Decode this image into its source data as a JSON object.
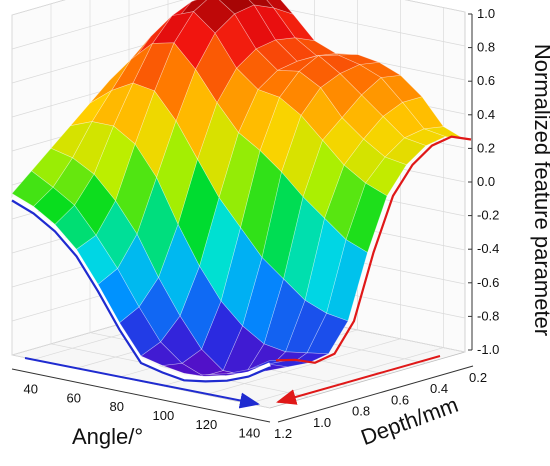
{
  "chart_data": {
    "type": "surface",
    "x_axis": {
      "label": "Angle/°",
      "ticks": [
        "40",
        "60",
        "80",
        "100",
        "120",
        "140"
      ],
      "range": [
        30,
        150
      ]
    },
    "y_axis": {
      "label": "Depth/mm",
      "ticks": [
        "1.2",
        "1.0",
        "0.8",
        "0.6",
        "0.4",
        "0.2"
      ],
      "range": [
        0.2,
        1.2
      ]
    },
    "z_axis": {
      "label": "Normalized feature parameter",
      "ticks": [
        "1.0",
        "0.8",
        "0.6",
        "0.4",
        "0.2",
        "0.0",
        "-0.2",
        "-0.4",
        "-0.6",
        "-0.8",
        "-1.0"
      ],
      "range": [
        -1.0,
        1.0
      ]
    },
    "colormap": [
      "#6a00b8",
      "#2a2ae0",
      "#0090ff",
      "#00e0e0",
      "#00dc20",
      "#b8f000",
      "#ffd000",
      "#ff7a00",
      "#f01010",
      "#8a0000"
    ],
    "grid": true,
    "angle_values": [
      30,
      40,
      50,
      60,
      70,
      80,
      90,
      100,
      110,
      120,
      130,
      140,
      150
    ],
    "depth_values": [
      0.2,
      0.3,
      0.4,
      0.5,
      0.6,
      0.7,
      0.8,
      0.9,
      1.0,
      1.1,
      1.2
    ],
    "z_values": [
      [
        0.8,
        0.8,
        0.88,
        0.9,
        0.78,
        0.65,
        0.6,
        0.62,
        0.6,
        0.55,
        0.45,
        0.3,
        0.25
      ],
      [
        0.75,
        0.82,
        0.95,
        0.97,
        0.85,
        0.7,
        0.62,
        0.65,
        0.62,
        0.57,
        0.45,
        0.32,
        0.3
      ],
      [
        0.65,
        0.78,
        0.92,
        1.0,
        0.9,
        0.72,
        0.62,
        0.68,
        0.6,
        0.5,
        0.4,
        0.3,
        0.28
      ],
      [
        0.55,
        0.72,
        0.9,
        0.97,
        0.88,
        0.7,
        0.6,
        0.62,
        0.55,
        0.4,
        0.3,
        0.22,
        0.2
      ],
      [
        0.5,
        0.7,
        0.85,
        0.9,
        0.8,
        0.62,
        0.52,
        0.5,
        0.42,
        0.3,
        0.18,
        0.1,
        0.05
      ],
      [
        0.45,
        0.6,
        0.72,
        0.75,
        0.62,
        0.45,
        0.3,
        0.22,
        0.12,
        0.0,
        -0.1,
        -0.2,
        -0.25
      ],
      [
        0.35,
        0.45,
        0.52,
        0.5,
        0.35,
        0.15,
        -0.05,
        -0.2,
        -0.35,
        -0.45,
        -0.55,
        -0.6,
        -0.62
      ],
      [
        0.25,
        0.3,
        0.3,
        0.22,
        0.05,
        -0.2,
        -0.42,
        -0.6,
        -0.72,
        -0.8,
        -0.82,
        -0.8,
        -0.78
      ],
      [
        0.15,
        0.12,
        0.05,
        -0.08,
        -0.25,
        -0.48,
        -0.68,
        -0.85,
        -0.95,
        -0.95,
        -0.9,
        -0.85,
        -0.8
      ],
      [
        0.05,
        -0.02,
        -0.1,
        -0.25,
        -0.42,
        -0.62,
        -0.8,
        -0.9,
        -0.95,
        -0.92,
        -0.88,
        -0.8,
        -0.75
      ],
      [
        -0.05,
        -0.1,
        -0.18,
        -0.3,
        -0.48,
        -0.68,
        -0.85,
        -0.88,
        -0.9,
        -0.88,
        -0.85,
        -0.8,
        -0.72
      ]
    ]
  }
}
